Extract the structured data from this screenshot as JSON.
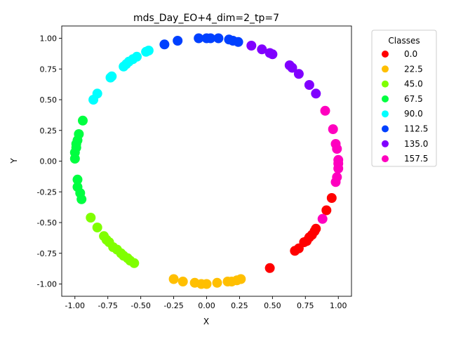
{
  "chart_data": {
    "type": "scatter",
    "title": "mds_Day_EO+4_dim=2_tp=7",
    "xlabel": "X",
    "ylabel": "Y",
    "xlim": [
      -1.1,
      1.1
    ],
    "ylim": [
      -1.1,
      1.1
    ],
    "xticks": [
      "-1.00",
      "-0.75",
      "-0.50",
      "-0.25",
      "0.00",
      "0.25",
      "0.50",
      "0.75",
      "1.00"
    ],
    "yticks": [
      "-1.00",
      "-0.75",
      "-0.50",
      "-0.25",
      "0.00",
      "0.25",
      "0.50",
      "0.75",
      "1.00"
    ],
    "grid": false,
    "legend": {
      "title": "Classes",
      "placement": "outside-right-top"
    },
    "series": [
      {
        "name": "0.0",
        "color": "#ff0000",
        "points": [
          [
            0.48,
            -0.87
          ],
          [
            0.67,
            -0.73
          ],
          [
            0.7,
            -0.71
          ],
          [
            0.74,
            -0.66
          ],
          [
            0.76,
            -0.65
          ],
          [
            0.78,
            -0.62
          ],
          [
            0.8,
            -0.6
          ],
          [
            0.82,
            -0.57
          ],
          [
            0.83,
            -0.55
          ],
          [
            0.91,
            -0.4
          ],
          [
            0.95,
            -0.3
          ]
        ]
      },
      {
        "name": "22.5",
        "color": "#ffbf00",
        "points": [
          [
            -0.25,
            -0.96
          ],
          [
            -0.18,
            -0.98
          ],
          [
            -0.09,
            -0.99
          ],
          [
            -0.04,
            -1.0
          ],
          [
            0.0,
            -1.0
          ],
          [
            0.08,
            -0.99
          ],
          [
            0.16,
            -0.98
          ],
          [
            0.19,
            -0.98
          ],
          [
            0.23,
            -0.97
          ],
          [
            0.26,
            -0.96
          ]
        ]
      },
      {
        "name": "45.0",
        "color": "#80ff00",
        "points": [
          [
            -0.88,
            -0.46
          ],
          [
            -0.83,
            -0.54
          ],
          [
            -0.78,
            -0.61
          ],
          [
            -0.76,
            -0.64
          ],
          [
            -0.74,
            -0.66
          ],
          [
            -0.71,
            -0.7
          ],
          [
            -0.68,
            -0.72
          ],
          [
            -0.65,
            -0.75
          ],
          [
            -0.63,
            -0.77
          ],
          [
            -0.6,
            -0.79
          ],
          [
            -0.58,
            -0.81
          ],
          [
            -0.55,
            -0.83
          ]
        ]
      },
      {
        "name": "67.5",
        "color": "#00ff40",
        "points": [
          [
            -0.94,
            0.33
          ],
          [
            -0.97,
            0.22
          ],
          [
            -0.98,
            0.17
          ],
          [
            -0.99,
            0.14
          ],
          [
            -0.99,
            0.11
          ],
          [
            -1.0,
            0.07
          ],
          [
            -1.0,
            0.02
          ],
          [
            -0.98,
            -0.15
          ],
          [
            -0.98,
            -0.21
          ],
          [
            -0.96,
            -0.26
          ],
          [
            -0.95,
            -0.31
          ]
        ]
      },
      {
        "name": "90.0",
        "color": "#00ffff",
        "points": [
          [
            -0.86,
            0.5
          ],
          [
            -0.83,
            0.55
          ],
          [
            -0.73,
            0.68
          ],
          [
            -0.72,
            0.69
          ],
          [
            -0.63,
            0.77
          ],
          [
            -0.61,
            0.79
          ],
          [
            -0.59,
            0.81
          ],
          [
            -0.56,
            0.83
          ],
          [
            -0.53,
            0.85
          ],
          [
            -0.46,
            0.89
          ],
          [
            -0.44,
            0.9
          ]
        ]
      },
      {
        "name": "112.5",
        "color": "#0040ff",
        "points": [
          [
            -0.32,
            0.95
          ],
          [
            -0.22,
            0.98
          ],
          [
            -0.06,
            1.0
          ],
          [
            0.0,
            1.0
          ],
          [
            0.03,
            1.0
          ],
          [
            0.09,
            1.0
          ],
          [
            0.17,
            0.99
          ],
          [
            0.2,
            0.98
          ],
          [
            0.24,
            0.97
          ]
        ]
      },
      {
        "name": "135.0",
        "color": "#8000ff",
        "points": [
          [
            0.34,
            0.94
          ],
          [
            0.42,
            0.91
          ],
          [
            0.48,
            0.88
          ],
          [
            0.5,
            0.87
          ],
          [
            0.63,
            0.78
          ],
          [
            0.65,
            0.76
          ],
          [
            0.7,
            0.71
          ],
          [
            0.78,
            0.62
          ],
          [
            0.83,
            0.55
          ]
        ]
      },
      {
        "name": "157.5",
        "color": "#ff00bf",
        "points": [
          [
            0.9,
            0.41
          ],
          [
            0.96,
            0.26
          ],
          [
            0.98,
            0.14
          ],
          [
            0.99,
            0.1
          ],
          [
            1.0,
            0.01
          ],
          [
            1.0,
            -0.02
          ],
          [
            1.0,
            -0.06
          ],
          [
            0.99,
            -0.13
          ],
          [
            0.98,
            -0.17
          ],
          [
            0.88,
            -0.47
          ]
        ]
      }
    ]
  }
}
